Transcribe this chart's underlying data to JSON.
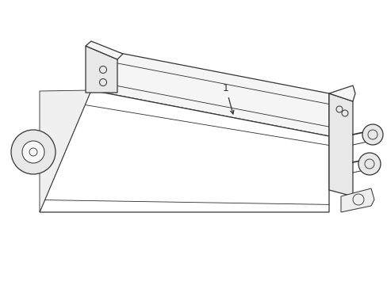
{
  "background_color": "#ffffff",
  "line_color": "#333333",
  "line_width": 0.9,
  "label_text": "1",
  "label_fontsize": 9,
  "figsize": [
    4.89,
    3.6
  ],
  "dpi": 100,
  "body_color": "#ffffff",
  "shading_color": "#e8e8e8",
  "top_shading": "#f5f5f5"
}
